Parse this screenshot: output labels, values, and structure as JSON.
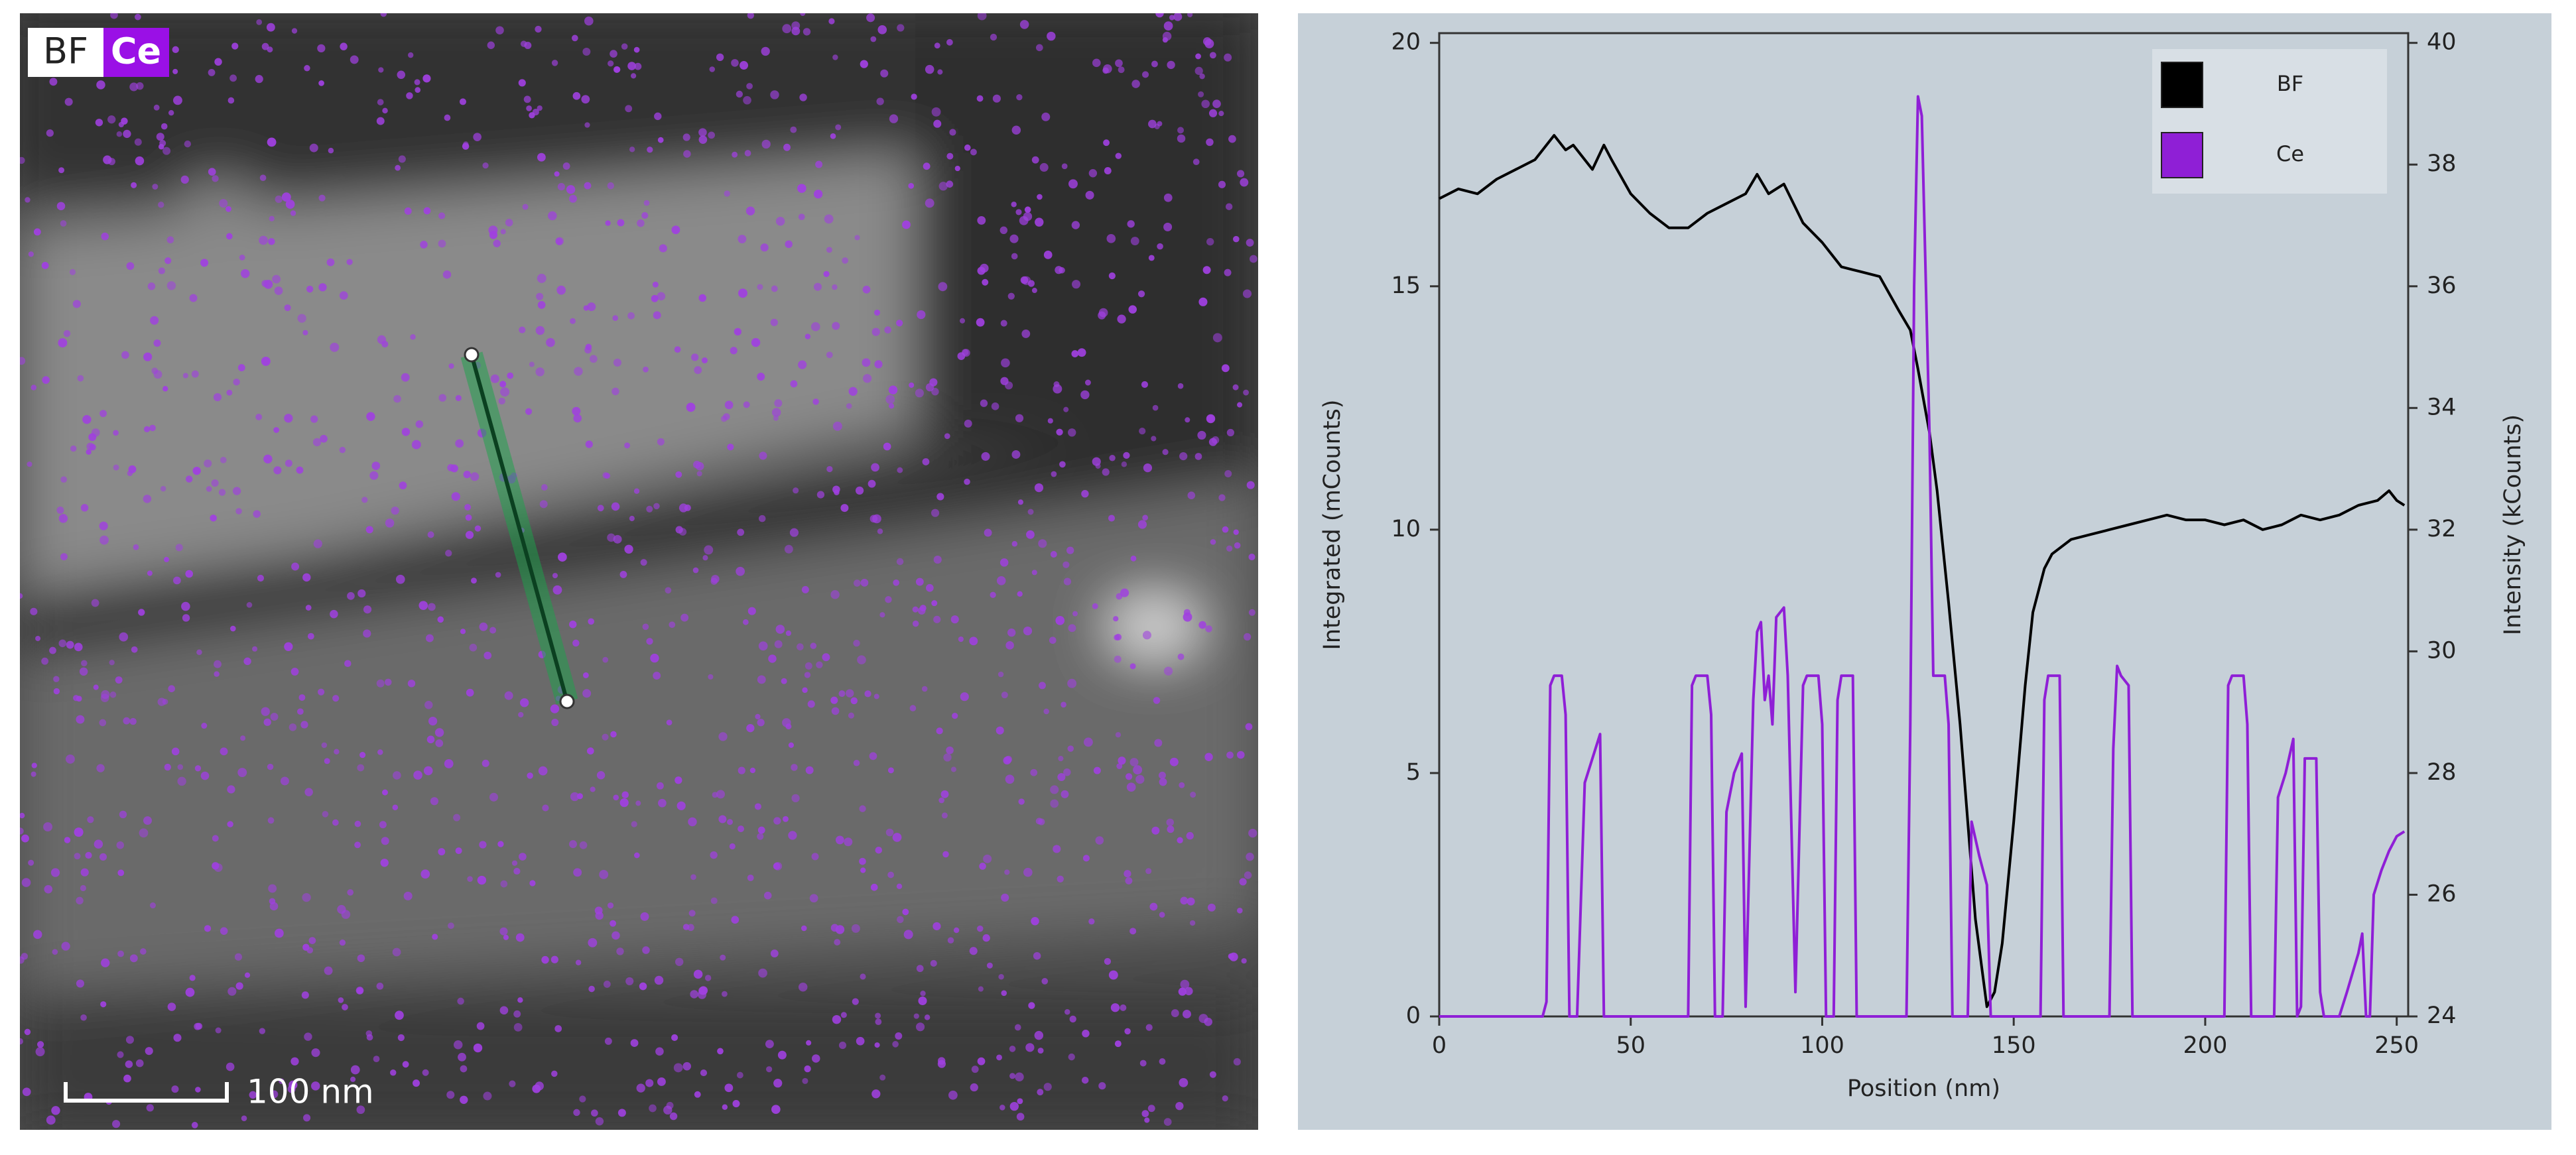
{
  "image": {
    "labels": [
      "BF",
      "Ce"
    ],
    "scale_bar": "100 nm"
  },
  "chart_data": {
    "type": "line",
    "xlabel": "Position (nm)",
    "ylabel": "Integrated (mCounts)",
    "y2label": "Intensity (kCounts)",
    "xlim": [
      0,
      253
    ],
    "xticks": [
      0,
      50,
      100,
      150,
      200,
      250
    ],
    "ylim": [
      0,
      20.2
    ],
    "yticks": [
      0,
      5,
      10,
      15,
      20
    ],
    "y2lim": [
      24,
      40.16
    ],
    "y2ticks": [
      24,
      26,
      28,
      30,
      32,
      34,
      36,
      38,
      40
    ],
    "legend": "upper right",
    "series": [
      {
        "name": "BF",
        "color": "#000000",
        "axis": "y2",
        "x": [
          0,
          5,
          10,
          15,
          20,
          25,
          30,
          33,
          35,
          38,
          40,
          43,
          45,
          50,
          55,
          60,
          65,
          70,
          75,
          80,
          83,
          86,
          90,
          95,
          100,
          105,
          110,
          115,
          120,
          123,
          125,
          128,
          130,
          133,
          136,
          138,
          140,
          142,
          143,
          145,
          147,
          150,
          153,
          155,
          158,
          160,
          165,
          170,
          175,
          180,
          185,
          190,
          195,
          200,
          205,
          210,
          215,
          220,
          225,
          230,
          235,
          240,
          245,
          248,
          250,
          252
        ],
        "values": [
          37.44,
          37.6,
          37.52,
          37.76,
          37.92,
          38.08,
          38.48,
          38.24,
          38.32,
          38.08,
          37.92,
          38.32,
          38.08,
          37.52,
          37.2,
          36.96,
          36.96,
          37.2,
          37.36,
          37.52,
          37.84,
          37.52,
          37.68,
          37.04,
          36.72,
          36.32,
          36.24,
          36.16,
          35.6,
          35.28,
          34.64,
          33.6,
          32.64,
          30.8,
          28.8,
          27.2,
          25.6,
          24.64,
          24.16,
          24.4,
          25.2,
          27.2,
          29.44,
          30.64,
          31.36,
          31.6,
          31.84,
          31.92,
          32.0,
          32.08,
          32.16,
          32.24,
          32.16,
          32.16,
          32.08,
          32.16,
          32.0,
          32.08,
          32.24,
          32.16,
          32.24,
          32.4,
          32.48,
          32.64,
          32.48,
          32.4
        ]
      },
      {
        "name": "Ce",
        "color": "#8f1fd6",
        "axis": "y",
        "x": [
          0,
          27,
          28,
          29,
          30,
          32,
          33,
          34,
          36,
          38,
          40,
          42,
          43,
          65,
          66,
          67,
          70,
          71,
          72,
          74,
          75,
          77,
          79,
          80,
          82,
          83,
          84,
          85,
          86,
          87,
          88,
          90,
          91,
          93,
          95,
          96,
          99,
          100,
          101,
          103,
          104,
          105,
          108,
          109,
          122,
          123,
          124,
          125,
          126,
          128,
          129,
          130,
          132,
          133,
          134,
          138,
          139,
          141,
          143,
          144,
          157,
          158,
          159,
          162,
          163,
          175,
          176,
          177,
          178,
          179,
          180,
          181,
          205,
          206,
          207,
          210,
          211,
          212,
          218,
          219,
          221,
          223,
          224,
          225,
          226,
          229,
          230,
          231,
          235,
          237,
          240,
          241,
          242,
          243,
          244,
          246,
          248,
          250,
          252
        ],
        "values": [
          0,
          0,
          0.3,
          6.8,
          7.0,
          7.0,
          6.2,
          0,
          0,
          4.8,
          5.3,
          5.8,
          0,
          0,
          6.8,
          7.0,
          7.0,
          6.2,
          0,
          0,
          4.2,
          5.0,
          5.4,
          0.2,
          6.5,
          7.9,
          8.1,
          6.5,
          7.0,
          6.0,
          8.2,
          8.4,
          7.0,
          0.5,
          6.8,
          7.0,
          7.0,
          6.0,
          0,
          0,
          6.5,
          7.0,
          7.0,
          0,
          0,
          6.0,
          15.0,
          18.9,
          18.5,
          12.0,
          7.0,
          7.0,
          7.0,
          6.0,
          0,
          0,
          4.0,
          3.3,
          2.7,
          0,
          0,
          6.5,
          7.0,
          7.0,
          0,
          0,
          5.5,
          7.2,
          7.0,
          6.9,
          6.8,
          0,
          0,
          6.8,
          7.0,
          7.0,
          6.0,
          0,
          0,
          4.5,
          5.0,
          5.7,
          0,
          0.2,
          5.3,
          5.3,
          0.5,
          0,
          0,
          0.5,
          1.3,
          1.7,
          0,
          0,
          2.5,
          3.0,
          3.4,
          3.7,
          3.8
        ]
      }
    ]
  }
}
